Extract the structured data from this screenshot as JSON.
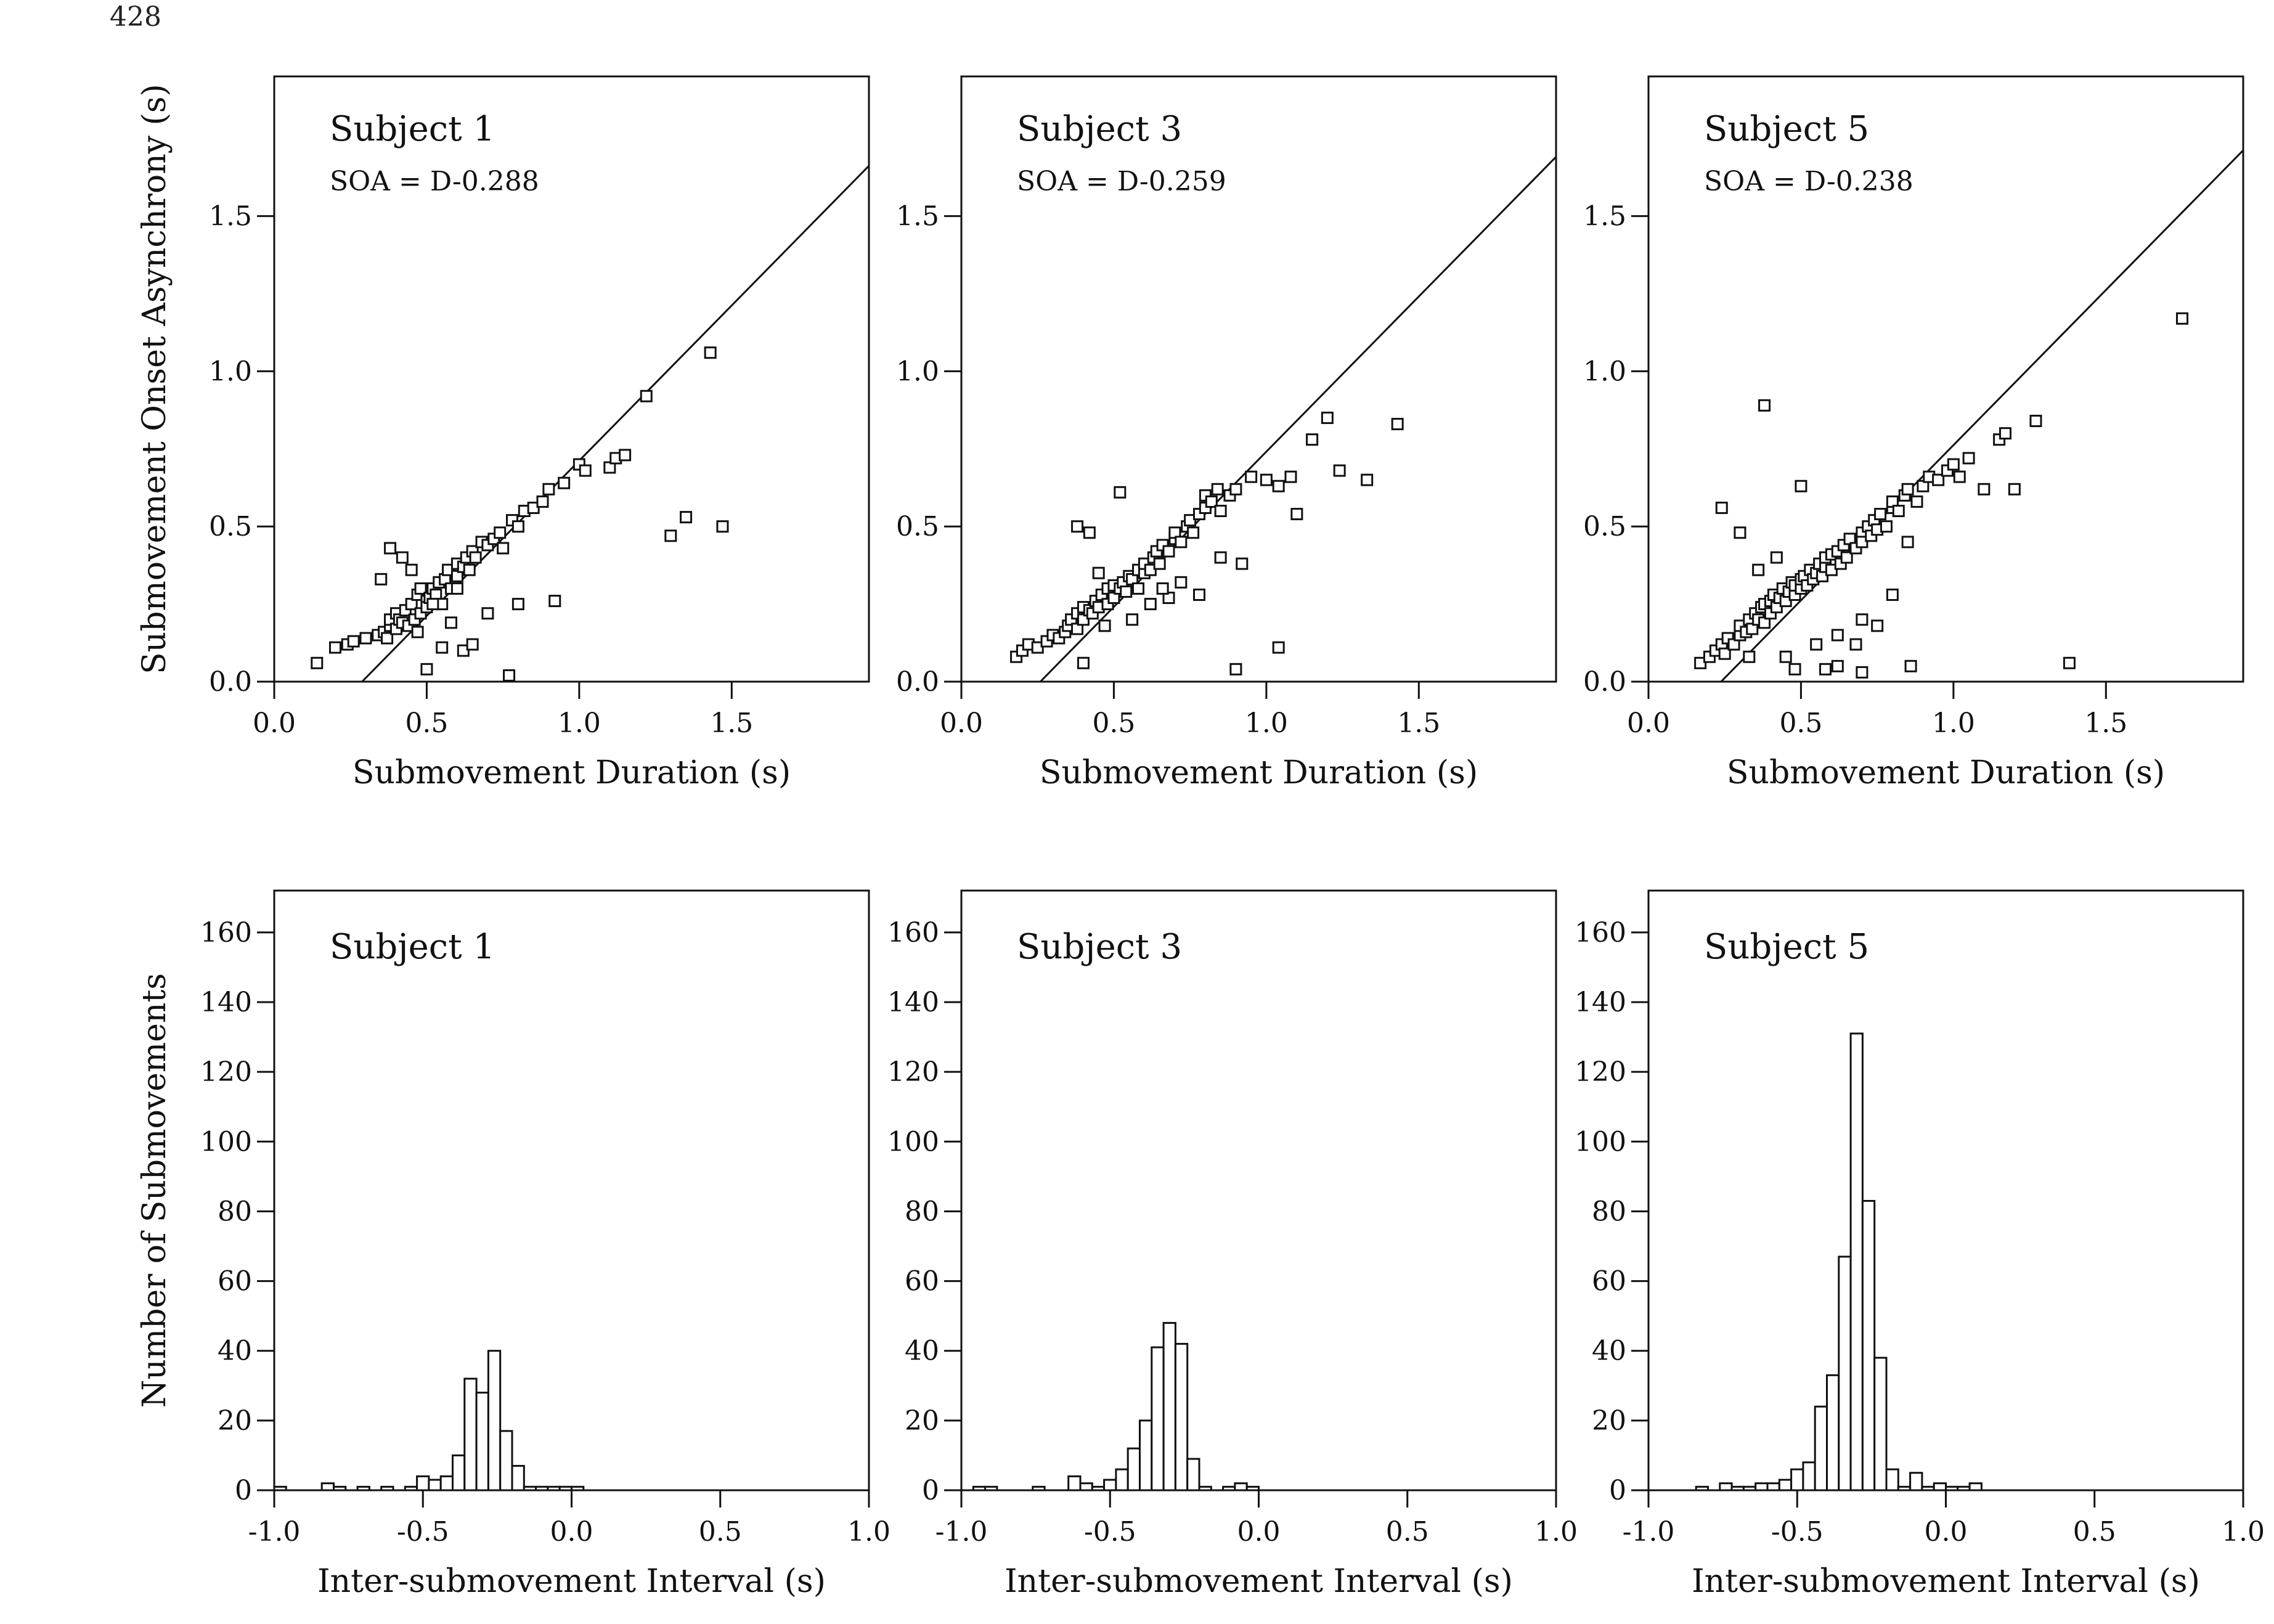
{
  "page_number": "428",
  "chart_data": [
    {
      "id": "scatter-s1",
      "type": "scatter",
      "title": "Subject 1",
      "subtitle": "SOA = D-0.288",
      "xlabel": "Submovement Duration (s)",
      "ylabel": "Submovement Onset Asynchrony (s)",
      "xlim": [
        0,
        1.95
      ],
      "ylim": [
        0,
        1.95
      ],
      "xticks": [
        0,
        0.5,
        1.0,
        1.5
      ],
      "xtick_labels": [
        "0.0",
        "0.5",
        "1.0",
        "1.5"
      ],
      "yticks": [
        0,
        0.5,
        1.0,
        1.5
      ],
      "ytick_labels": [
        "0.0",
        "0.5",
        "1.0",
        "1.5"
      ],
      "fit_line": {
        "slope": 1,
        "intercept": -0.288
      },
      "x": [
        0.14,
        0.2,
        0.24,
        0.26,
        0.3,
        0.34,
        0.36,
        0.37,
        0.38,
        0.38,
        0.4,
        0.4,
        0.41,
        0.42,
        0.43,
        0.44,
        0.45,
        0.46,
        0.47,
        0.48,
        0.48,
        0.5,
        0.5,
        0.51,
        0.52,
        0.53,
        0.54,
        0.55,
        0.56,
        0.57,
        0.58,
        0.6,
        0.6,
        0.62,
        0.63,
        0.64,
        0.65,
        0.66,
        0.68,
        0.7,
        0.72,
        0.74,
        0.75,
        0.78,
        0.8,
        0.82,
        0.85,
        0.88,
        0.9,
        0.95,
        1.0,
        1.02,
        1.1,
        1.12,
        1.15,
        1.22,
        1.3,
        1.35,
        1.43,
        1.47,
        0.38,
        0.42,
        0.5,
        0.55,
        0.62,
        0.65,
        0.77,
        0.92,
        0.8,
        0.58,
        0.45,
        0.35,
        0.52,
        0.47,
        0.6,
        0.7
      ],
      "y": [
        0.06,
        0.11,
        0.12,
        0.13,
        0.14,
        0.15,
        0.16,
        0.14,
        0.18,
        0.2,
        0.17,
        0.22,
        0.2,
        0.19,
        0.23,
        0.18,
        0.25,
        0.2,
        0.28,
        0.22,
        0.3,
        0.26,
        0.24,
        0.27,
        0.3,
        0.28,
        0.32,
        0.25,
        0.33,
        0.36,
        0.3,
        0.34,
        0.38,
        0.37,
        0.4,
        0.36,
        0.42,
        0.4,
        0.45,
        0.44,
        0.46,
        0.48,
        0.43,
        0.52,
        0.5,
        0.55,
        0.56,
        0.58,
        0.62,
        0.64,
        0.7,
        0.68,
        0.69,
        0.72,
        0.73,
        0.92,
        0.47,
        0.53,
        1.06,
        0.5,
        0.43,
        0.4,
        0.04,
        0.11,
        0.1,
        0.12,
        0.02,
        0.26,
        0.25,
        0.19,
        0.36,
        0.33,
        0.25,
        0.16,
        0.3,
        0.22
      ]
    },
    {
      "id": "scatter-s3",
      "type": "scatter",
      "title": "Subject 3",
      "subtitle": "SOA = D-0.259",
      "xlabel": "Submovement Duration (s)",
      "ylabel": "",
      "xlim": [
        0,
        1.95
      ],
      "ylim": [
        0,
        1.95
      ],
      "xticks": [
        0,
        0.5,
        1.0,
        1.5
      ],
      "xtick_labels": [
        "0.0",
        "0.5",
        "1.0",
        "1.5"
      ],
      "yticks": [
        0,
        0.5,
        1.0,
        1.5
      ],
      "ytick_labels": [
        "0.0",
        "0.5",
        "1.0",
        "1.5"
      ],
      "fit_line": {
        "slope": 1,
        "intercept": -0.259
      },
      "x": [
        0.18,
        0.2,
        0.22,
        0.25,
        0.28,
        0.3,
        0.32,
        0.34,
        0.35,
        0.36,
        0.38,
        0.38,
        0.4,
        0.4,
        0.42,
        0.43,
        0.44,
        0.45,
        0.46,
        0.48,
        0.48,
        0.5,
        0.5,
        0.52,
        0.53,
        0.54,
        0.55,
        0.56,
        0.58,
        0.58,
        0.6,
        0.6,
        0.62,
        0.63,
        0.64,
        0.65,
        0.66,
        0.68,
        0.7,
        0.7,
        0.72,
        0.74,
        0.75,
        0.76,
        0.78,
        0.8,
        0.8,
        0.82,
        0.84,
        0.85,
        0.88,
        0.9,
        0.95,
        1.0,
        1.04,
        1.08,
        1.1,
        1.15,
        1.2,
        1.24,
        1.33,
        1.43,
        0.38,
        0.42,
        0.52,
        0.9,
        1.04,
        0.62,
        0.78,
        0.85,
        0.45,
        0.4,
        0.56,
        0.68,
        0.72,
        0.92,
        0.47,
        0.66
      ],
      "y": [
        0.08,
        0.1,
        0.12,
        0.11,
        0.13,
        0.15,
        0.14,
        0.16,
        0.18,
        0.2,
        0.17,
        0.22,
        0.2,
        0.24,
        0.23,
        0.22,
        0.26,
        0.24,
        0.28,
        0.25,
        0.3,
        0.27,
        0.31,
        0.3,
        0.32,
        0.29,
        0.34,
        0.33,
        0.36,
        0.3,
        0.35,
        0.38,
        0.36,
        0.4,
        0.42,
        0.38,
        0.44,
        0.42,
        0.46,
        0.48,
        0.45,
        0.5,
        0.52,
        0.48,
        0.54,
        0.56,
        0.6,
        0.58,
        0.62,
        0.55,
        0.6,
        0.62,
        0.66,
        0.65,
        0.63,
        0.66,
        0.54,
        0.78,
        0.85,
        0.68,
        0.65,
        0.83,
        0.5,
        0.48,
        0.61,
        0.04,
        0.11,
        0.25,
        0.28,
        0.4,
        0.35,
        0.06,
        0.2,
        0.27,
        0.32,
        0.38,
        0.18,
        0.3
      ]
    },
    {
      "id": "scatter-s5",
      "type": "scatter",
      "title": "Subject 5",
      "subtitle": "SOA = D-0.238",
      "xlabel": "Submovement Duration (s)",
      "ylabel": "",
      "xlim": [
        0,
        1.95
      ],
      "ylim": [
        0,
        1.95
      ],
      "xticks": [
        0,
        0.5,
        1.0,
        1.5
      ],
      "xtick_labels": [
        "0.0",
        "0.5",
        "1.0",
        "1.5"
      ],
      "yticks": [
        0,
        0.5,
        1.0,
        1.5
      ],
      "ytick_labels": [
        "0.0",
        "0.5",
        "1.0",
        "1.5"
      ],
      "fit_line": {
        "slope": 1,
        "intercept": -0.238
      },
      "x": [
        0.17,
        0.2,
        0.22,
        0.24,
        0.25,
        0.26,
        0.28,
        0.3,
        0.3,
        0.32,
        0.33,
        0.34,
        0.35,
        0.36,
        0.37,
        0.38,
        0.38,
        0.4,
        0.4,
        0.41,
        0.42,
        0.43,
        0.44,
        0.45,
        0.46,
        0.47,
        0.48,
        0.48,
        0.5,
        0.5,
        0.51,
        0.52,
        0.53,
        0.54,
        0.55,
        0.56,
        0.57,
        0.58,
        0.58,
        0.6,
        0.6,
        0.62,
        0.63,
        0.64,
        0.65,
        0.66,
        0.68,
        0.7,
        0.7,
        0.72,
        0.73,
        0.74,
        0.75,
        0.76,
        0.78,
        0.8,
        0.8,
        0.82,
        0.84,
        0.85,
        0.88,
        0.9,
        0.92,
        0.95,
        0.98,
        1.0,
        1.02,
        1.05,
        1.1,
        1.15,
        1.17,
        1.2,
        1.27,
        1.38,
        1.75,
        0.38,
        0.24,
        0.5,
        0.3,
        0.42,
        0.36,
        0.55,
        0.62,
        0.7,
        0.75,
        0.85,
        0.45,
        0.68,
        0.8,
        0.33,
        0.48,
        0.58,
        0.62,
        0.7,
        0.86
      ],
      "y": [
        0.06,
        0.08,
        0.1,
        0.12,
        0.09,
        0.14,
        0.12,
        0.15,
        0.18,
        0.16,
        0.2,
        0.17,
        0.22,
        0.2,
        0.24,
        0.19,
        0.25,
        0.22,
        0.26,
        0.28,
        0.24,
        0.27,
        0.3,
        0.26,
        0.29,
        0.32,
        0.28,
        0.31,
        0.3,
        0.33,
        0.34,
        0.31,
        0.36,
        0.33,
        0.35,
        0.38,
        0.34,
        0.37,
        0.4,
        0.36,
        0.41,
        0.42,
        0.38,
        0.44,
        0.4,
        0.46,
        0.43,
        0.48,
        0.45,
        0.5,
        0.47,
        0.52,
        0.49,
        0.54,
        0.5,
        0.56,
        0.58,
        0.55,
        0.6,
        0.62,
        0.58,
        0.63,
        0.66,
        0.65,
        0.68,
        0.7,
        0.66,
        0.72,
        0.62,
        0.78,
        0.8,
        0.62,
        0.84,
        0.06,
        1.17,
        0.89,
        0.56,
        0.63,
        0.48,
        0.4,
        0.36,
        0.12,
        0.15,
        0.2,
        0.18,
        0.45,
        0.08,
        0.12,
        0.28,
        0.08,
        0.04,
        0.04,
        0.05,
        0.03,
        0.05
      ]
    },
    {
      "id": "hist-s1",
      "type": "bar",
      "title": "Subject 1",
      "xlabel": "Inter-submovement Interval (s)",
      "ylabel": "Number of Submovements",
      "xlim": [
        -1.0,
        1.0
      ],
      "ylim": [
        0,
        172
      ],
      "xticks": [
        -1.0,
        -0.5,
        0.0,
        0.5,
        1.0
      ],
      "xtick_labels": [
        "-1.0",
        "-0.5",
        "0.0",
        "0.5",
        "1.0"
      ],
      "yticks": [
        0,
        20,
        40,
        60,
        80,
        100,
        120,
        140,
        160
      ],
      "ytick_labels": [
        "0",
        "20",
        "40",
        "60",
        "80",
        "100",
        "120",
        "140",
        "160"
      ],
      "bin_width": 0.04,
      "bin_starts": [
        -1.0,
        -0.96,
        -0.92,
        -0.88,
        -0.84,
        -0.8,
        -0.76,
        -0.72,
        -0.68,
        -0.64,
        -0.6,
        -0.56,
        -0.52,
        -0.48,
        -0.44,
        -0.4,
        -0.36,
        -0.32,
        -0.28,
        -0.24,
        -0.2,
        -0.16,
        -0.12,
        -0.08,
        -0.04,
        0.0,
        0.04,
        0.08
      ],
      "values": [
        1,
        0,
        0,
        0,
        2,
        1,
        0,
        1,
        0,
        1,
        0,
        1,
        4,
        3,
        4,
        10,
        32,
        28,
        40,
        17,
        7,
        1,
        1,
        1,
        1,
        1,
        0,
        0
      ]
    },
    {
      "id": "hist-s3",
      "type": "bar",
      "title": "Subject 3",
      "xlabel": "Inter-submovement Interval (s)",
      "ylabel": "",
      "xlim": [
        -1.0,
        1.0
      ],
      "ylim": [
        0,
        172
      ],
      "xticks": [
        -1.0,
        -0.5,
        0.0,
        0.5,
        1.0
      ],
      "xtick_labels": [
        "-1.0",
        "-0.5",
        "0.0",
        "0.5",
        "1.0"
      ],
      "yticks": [
        0,
        20,
        40,
        60,
        80,
        100,
        120,
        140,
        160
      ],
      "ytick_labels": [
        "0",
        "20",
        "40",
        "60",
        "80",
        "100",
        "120",
        "140",
        "160"
      ],
      "bin_width": 0.04,
      "bin_starts": [
        -0.96,
        -0.92,
        -0.88,
        -0.84,
        -0.8,
        -0.76,
        -0.72,
        -0.68,
        -0.64,
        -0.6,
        -0.56,
        -0.52,
        -0.48,
        -0.44,
        -0.4,
        -0.36,
        -0.32,
        -0.28,
        -0.24,
        -0.2,
        -0.16,
        -0.12,
        -0.08,
        -0.04,
        0.0,
        0.04,
        0.08,
        0.12
      ],
      "values": [
        1,
        1,
        0,
        0,
        0,
        1,
        0,
        0,
        4,
        2,
        1,
        3,
        6,
        12,
        20,
        41,
        48,
        42,
        9,
        1,
        0,
        1,
        2,
        1,
        0,
        0,
        0,
        0
      ]
    },
    {
      "id": "hist-s5",
      "type": "bar",
      "title": "Subject 5",
      "xlabel": "Inter-submovement Interval (s)",
      "ylabel": "",
      "xlim": [
        -1.0,
        1.0
      ],
      "ylim": [
        0,
        172
      ],
      "xticks": [
        -1.0,
        -0.5,
        0.0,
        0.5,
        1.0
      ],
      "xtick_labels": [
        "-1.0",
        "-0.5",
        "0.0",
        "0.5",
        "1.0"
      ],
      "yticks": [
        0,
        20,
        40,
        60,
        80,
        100,
        120,
        140,
        160
      ],
      "ytick_labels": [
        "0",
        "20",
        "40",
        "60",
        "80",
        "100",
        "120",
        "140",
        "160"
      ],
      "bin_width": 0.04,
      "bin_starts": [
        -0.84,
        -0.8,
        -0.76,
        -0.72,
        -0.68,
        -0.64,
        -0.6,
        -0.56,
        -0.52,
        -0.48,
        -0.44,
        -0.4,
        -0.36,
        -0.32,
        -0.28,
        -0.24,
        -0.2,
        -0.16,
        -0.12,
        -0.08,
        -0.04,
        0.0,
        0.04,
        0.08,
        0.12,
        0.16,
        0.2,
        0.24,
        0.28
      ],
      "values": [
        1,
        0,
        2,
        1,
        1,
        2,
        2,
        3,
        6,
        8,
        24,
        33,
        67,
        131,
        83,
        38,
        6,
        1,
        5,
        1,
        2,
        1,
        1,
        2,
        0,
        0,
        0,
        0,
        0
      ]
    }
  ]
}
